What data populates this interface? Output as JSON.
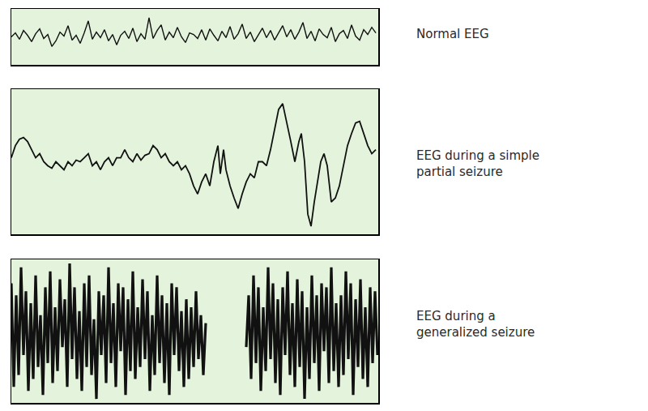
{
  "chart_data": [
    {
      "type": "line",
      "title": "Normal EEG",
      "x": [
        0,
        5,
        10,
        15,
        20,
        25,
        30,
        35,
        40,
        45,
        50,
        55,
        60,
        65,
        70,
        75,
        80,
        85,
        90,
        95,
        100,
        105,
        110,
        115,
        120,
        125,
        130,
        135,
        140,
        145,
        150,
        155,
        160,
        165,
        170,
        175,
        180,
        185,
        190,
        195,
        200,
        205,
        210,
        215,
        220,
        225,
        230,
        235,
        240,
        245,
        250,
        255,
        260,
        265,
        270,
        275,
        280,
        285,
        290,
        295,
        300,
        305,
        310,
        315,
        320,
        325,
        330,
        335,
        340,
        345,
        350,
        355,
        360,
        365,
        370,
        375,
        380,
        385,
        390,
        395,
        400,
        405,
        410,
        415,
        420,
        425,
        430,
        435,
        440,
        445,
        450
      ],
      "values": [
        0,
        5,
        -3,
        8,
        2,
        -6,
        4,
        10,
        -2,
        3,
        -12,
        -5,
        6,
        1,
        14,
        -4,
        2,
        -8,
        5,
        20,
        -3,
        6,
        -1,
        9,
        -5,
        3,
        -10,
        2,
        7,
        -2,
        11,
        -6,
        4,
        -3,
        24,
        -2,
        8,
        15,
        -4,
        6,
        -1,
        12,
        0,
        -7,
        5,
        3,
        -2,
        9,
        -4,
        10,
        2,
        -5,
        7,
        -1,
        13,
        -3,
        4,
        16,
        -2,
        6,
        -6,
        3,
        11,
        -1,
        8,
        -4,
        5,
        14,
        0,
        9,
        -3,
        6,
        18,
        -2,
        7,
        -5,
        10,
        3,
        -1,
        12,
        -6,
        4,
        8,
        -2,
        15,
        1,
        -4,
        9,
        3,
        12,
        5
      ],
      "xlim": [
        0,
        453
      ],
      "ylim": [
        -35,
        35
      ],
      "color": "#111111",
      "grid": false,
      "tick_labels": false
    },
    {
      "type": "line",
      "title": "EEG during a simple\npartial seizure",
      "x": [
        0,
        5,
        10,
        15,
        20,
        25,
        30,
        35,
        40,
        45,
        50,
        55,
        60,
        65,
        70,
        75,
        80,
        85,
        90,
        95,
        100,
        105,
        110,
        115,
        120,
        125,
        130,
        135,
        140,
        145,
        150,
        155,
        160,
        165,
        170,
        175,
        180,
        185,
        190,
        195,
        200,
        205,
        210,
        215,
        220,
        225,
        230,
        235,
        240,
        245,
        250,
        255,
        258,
        262,
        265,
        270,
        275,
        280,
        285,
        290,
        295,
        300,
        305,
        310,
        315,
        320,
        325,
        330,
        335,
        340,
        345,
        350,
        355,
        358,
        362,
        366,
        370,
        374,
        378,
        382,
        386,
        390,
        395,
        400,
        405,
        410,
        415,
        420,
        425,
        430,
        435,
        440,
        445,
        450
      ],
      "values": [
        5,
        20,
        28,
        30,
        25,
        15,
        5,
        10,
        0,
        -5,
        -8,
        0,
        -5,
        -10,
        0,
        -5,
        2,
        0,
        5,
        10,
        -5,
        0,
        -10,
        0,
        5,
        -5,
        5,
        5,
        15,
        5,
        0,
        10,
        2,
        8,
        10,
        20,
        15,
        5,
        10,
        0,
        -5,
        0,
        -10,
        -5,
        -15,
        -30,
        -40,
        -25,
        -15,
        -30,
        0,
        20,
        -15,
        15,
        -10,
        -30,
        -45,
        -58,
        -40,
        -25,
        -15,
        -20,
        0,
        0,
        -5,
        15,
        40,
        65,
        72,
        50,
        25,
        0,
        25,
        35,
        0,
        -65,
        -80,
        -50,
        -25,
        0,
        10,
        -5,
        -50,
        -45,
        -30,
        -5,
        20,
        35,
        48,
        50,
        35,
        20,
        10,
        15
      ],
      "xlim": [
        0,
        453
      ],
      "ylim": [
        -90,
        90
      ],
      "color": "#111111",
      "grid": false,
      "tick_labels": false
    },
    {
      "type": "line",
      "title": "EEG during a\ngeneralized seizure",
      "x": [
        0,
        3,
        6,
        9,
        12,
        15,
        18,
        21,
        24,
        27,
        30,
        33,
        36,
        39,
        42,
        45,
        48,
        51,
        54,
        57,
        60,
        63,
        66,
        69,
        72,
        75,
        78,
        81,
        84,
        87,
        90,
        93,
        96,
        99,
        102,
        105,
        108,
        111,
        114,
        117,
        120,
        123,
        126,
        129,
        132,
        135,
        138,
        141,
        144,
        147,
        150,
        153,
        156,
        159,
        162,
        165,
        168,
        171,
        174,
        177,
        180,
        183,
        186,
        189,
        192,
        195,
        198,
        201,
        204,
        207,
        210,
        213,
        216,
        219,
        222,
        225,
        228,
        231,
        234,
        237,
        240,
        265,
        290,
        293,
        296,
        299,
        302,
        305,
        308,
        311,
        314,
        317,
        320,
        323,
        326,
        329,
        332,
        335,
        338,
        341,
        344,
        347,
        350,
        353,
        356,
        359,
        362,
        365,
        368,
        371,
        374,
        377,
        380,
        383,
        386,
        389,
        392,
        395,
        398,
        401,
        404,
        407,
        410,
        413,
        416,
        419,
        422,
        425,
        428,
        431,
        434,
        437,
        440,
        443,
        446,
        449,
        452
      ],
      "values": [
        60,
        -70,
        45,
        -55,
        80,
        -30,
        50,
        -75,
        35,
        -60,
        70,
        -45,
        20,
        -80,
        55,
        -40,
        75,
        -65,
        30,
        -50,
        65,
        -20,
        40,
        -70,
        85,
        -35,
        55,
        -60,
        25,
        -75,
        60,
        -45,
        70,
        -55,
        15,
        -85,
        50,
        -30,
        45,
        -65,
        80,
        -40,
        35,
        -70,
        60,
        -25,
        55,
        -80,
        40,
        -50,
        75,
        -60,
        30,
        -45,
        65,
        -35,
        50,
        -75,
        20,
        -55,
        70,
        -40,
        45,
        -65,
        35,
        -80,
        60,
        -30,
        55,
        -50,
        25,
        -70,
        40,
        -60,
        30,
        -45,
        50,
        -35,
        20,
        -55,
        10,
        null,
        -20,
        45,
        -60,
        70,
        -40,
        55,
        -75,
        30,
        -50,
        80,
        -35,
        60,
        -65,
        40,
        -80,
        55,
        -30,
        75,
        -55,
        35,
        -70,
        65,
        -45,
        50,
        -85,
        30,
        -60,
        70,
        -40,
        45,
        -75,
        60,
        -25,
        55,
        -65,
        80,
        -50,
        35,
        -70,
        45,
        -55,
        75,
        -35,
        60,
        -80,
        40,
        -45,
        65,
        -60,
        30,
        -70,
        55,
        -40,
        50,
        -30
      ],
      "xlim": [
        0,
        453
      ],
      "ylim": [
        -90,
        90
      ],
      "color": "#111111",
      "grid": false,
      "tick_labels": false
    }
  ]
}
